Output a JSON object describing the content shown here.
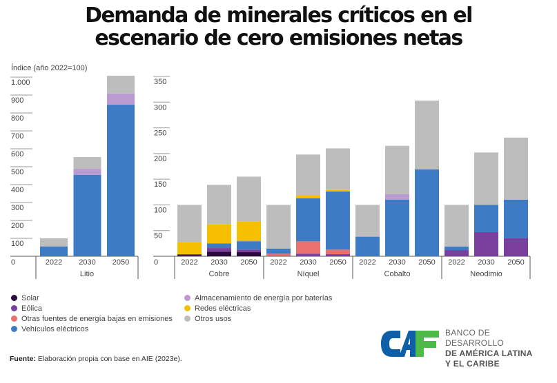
{
  "title_line1": "Demanda de minerales críticos en el",
  "title_line2": "escenario de cero emisiones netas",
  "chart_data": {
    "type": "bar",
    "stacked": true,
    "ylabel": "Índice (año 2022=100)",
    "series_names": [
      "Solar",
      "Eólica",
      "Otras fuentes de energía bajas en emisiones",
      "Vehículos eléctricos",
      "Almacenamiento de energía por baterías",
      "Redes eléctricas",
      "Otros usos"
    ],
    "series_colors": [
      "#2b0a3d",
      "#7b3f9e",
      "#e8706f",
      "#3d7cc4",
      "#b99ad1",
      "#f5c000",
      "#bdbdbd"
    ],
    "stack_order": [
      "Solar",
      "Eólica",
      "Otras fuentes de energía bajas en emisiones",
      "Vehículos eléctricos",
      "Almacenamiento de energía por baterías",
      "Redes eléctricas",
      "Otros usos"
    ],
    "panels": [
      {
        "name": "left",
        "ylim": [
          0,
          1000
        ],
        "yticks": [
          0,
          100,
          200,
          300,
          400,
          500,
          600,
          700,
          800,
          900,
          1000
        ],
        "ytick_labels": [
          "0",
          "100",
          "200",
          "300",
          "400",
          "500",
          "600",
          "700",
          "800",
          "900",
          "1.000"
        ],
        "groups": [
          {
            "mineral": "Litio",
            "bars": [
              {
                "year": "2022",
                "values": [
                  0,
                  0,
                  0,
                  55,
                  0,
                  0,
                  45
                ]
              },
              {
                "year": "2030",
                "values": [
                  0,
                  0,
                  0,
                  455,
                  33,
                  0,
                  66
                ]
              },
              {
                "year": "2050",
                "values": [
                  0,
                  0,
                  0,
                  846,
                  62,
                  0,
                  100
                ]
              }
            ]
          }
        ]
      },
      {
        "name": "right",
        "ylim": [
          0,
          350
        ],
        "yticks": [
          0,
          50,
          100,
          150,
          200,
          250,
          300,
          350
        ],
        "ytick_labels": [
          "0",
          "50",
          "100",
          "150",
          "200",
          "250",
          "300",
          "350"
        ],
        "groups": [
          {
            "mineral": "Cobre",
            "bars": [
              {
                "year": "2022",
                "values": [
                  2,
                  2,
                  0,
                  0,
                  0,
                  23,
                  73
                ]
              },
              {
                "year": "2030",
                "values": [
                  9,
                  7,
                  0,
                  9,
                  0,
                  37,
                  77
                ]
              },
              {
                "year": "2050",
                "values": [
                  8,
                  5,
                  0,
                  16,
                  2,
                  37,
                  87
                ]
              }
            ]
          },
          {
            "mineral": "Níquel",
            "bars": [
              {
                "year": "2022",
                "values": [
                  0,
                  1,
                  4,
                  10,
                  0,
                  0,
                  85
                ]
              },
              {
                "year": "2030",
                "values": [
                  0,
                  5,
                  24,
                  84,
                  0,
                  5,
                  80
                ]
              },
              {
                "year": "2050",
                "values": [
                  0,
                  4,
                  9,
                  113,
                  0,
                  3,
                  81
                ]
              }
            ]
          },
          {
            "mineral": "Cobalto",
            "bars": [
              {
                "year": "2022",
                "values": [
                  0,
                  0,
                  0,
                  38,
                  1,
                  0,
                  61
                ]
              },
              {
                "year": "2030",
                "values": [
                  0,
                  0,
                  0,
                  110,
                  11,
                  0,
                  94
                ]
              },
              {
                "year": "2050",
                "values": [
                  0,
                  0,
                  0,
                  169,
                  0,
                  0,
                  134
                ]
              }
            ]
          },
          {
            "mineral": "Neodimio",
            "bars": [
              {
                "year": "2022",
                "values": [
                  0,
                  12,
                  0,
                  7,
                  0,
                  0,
                  81
                ]
              },
              {
                "year": "2030",
                "values": [
                  0,
                  47,
                  0,
                  53,
                  0,
                  0,
                  102
                ]
              },
              {
                "year": "2050",
                "values": [
                  0,
                  35,
                  0,
                  75,
                  0,
                  0,
                  121
                ]
              }
            ]
          }
        ]
      }
    ],
    "legend": {
      "position": "bottom-left",
      "columns": [
        [
          "Solar",
          "Eólica",
          "Otras fuentes de energía bajas en emisiones",
          "Vehículos eléctricos"
        ],
        [
          "Almacenamiento de energía por baterías",
          "Redes eléctricas",
          "Otros usos"
        ]
      ]
    }
  },
  "legend_col1": [
    {
      "label": "Solar",
      "color": "#2b0a3d"
    },
    {
      "label": "Eólica",
      "color": "#7b3f9e"
    },
    {
      "label": "Otras fuentes de energía bajas en emisiones",
      "color": "#e8706f"
    },
    {
      "label": "Vehículos eléctricos",
      "color": "#3d7cc4"
    }
  ],
  "legend_col2": [
    {
      "label": "Almacenamiento de energía por baterías",
      "color": "#b99ad1"
    },
    {
      "label": "Redes eléctricas",
      "color": "#f5c000"
    },
    {
      "label": "Otros usos",
      "color": "#bdbdbd"
    }
  ],
  "source_label": "Fuente:",
  "source_text": " Elaboración propia con base en AIE (2023e).",
  "logo": {
    "mark": "CAF",
    "line1": "BANCO DE DESARROLLO",
    "line2": "DE AMÉRICA LATINA",
    "line3": "Y EL CARIBE",
    "color_blue": "#0e5ea8",
    "color_green": "#4cbb47"
  }
}
